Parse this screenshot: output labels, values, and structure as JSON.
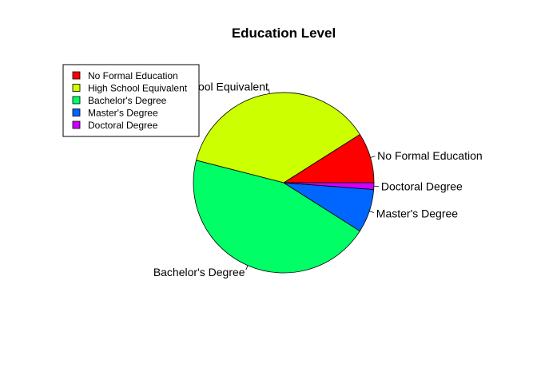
{
  "chart_data": {
    "type": "pie",
    "title": "Education Level",
    "categories": [
      "No Formal Education",
      "High School Equivalent",
      "Bachelor's Degree",
      "Master's Degree",
      "Doctoral Degree"
    ],
    "values": [
      9.0,
      37.0,
      45.0,
      7.8,
      1.2
    ],
    "slice_order_on_pie": [
      "No Formal Education",
      "High School Equivalent",
      "Bachelor's Degree",
      "Master's Degree",
      "Doctoral Degree"
    ],
    "slice_labels": [
      "No Formal Education",
      "High School Equivalent",
      "Bachelor's Degree",
      "Master's Degree",
      "Doctoral Degree"
    ],
    "colors": [
      "#FF0000",
      "#CCFF00",
      "#00FF66",
      "#0066FF",
      "#CC00FF"
    ],
    "legend": {
      "placement": "top-left",
      "entries": [
        "No Formal Education",
        "High School Equivalent",
        "Bachelor's Degree",
        "Master's Degree",
        "Doctoral Degree"
      ]
    },
    "grid": false
  }
}
